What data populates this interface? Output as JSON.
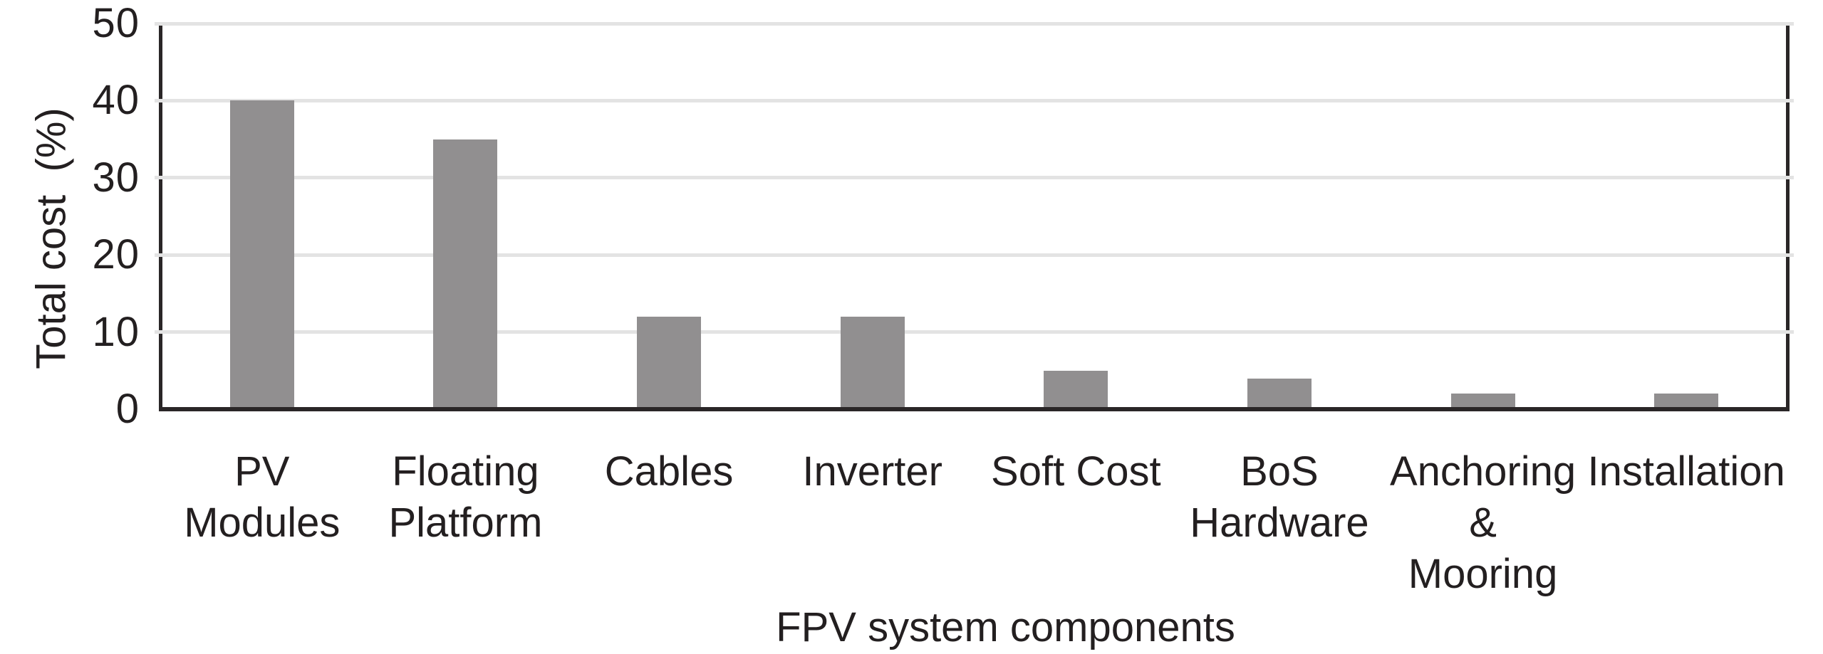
{
  "chart_data": {
    "type": "bar",
    "title": "",
    "categories": [
      "PV Modules",
      "Floating\nPlatform",
      "Cables",
      "Inverter",
      "Soft Cost",
      "BoS\nHardware",
      "Anchoring\n&\nMooring",
      "Installation"
    ],
    "values": [
      40,
      35,
      12,
      12,
      5,
      4,
      2,
      2
    ],
    "xlabel": "FPV system components",
    "ylabel": "Total cost  (%)",
    "yticks": [
      0,
      10,
      20,
      30,
      40,
      50
    ],
    "ylim": [
      0,
      50
    ],
    "grid": "horizontal",
    "legend": "none",
    "bar_color": "#918f90",
    "gridline_color": "#e3e3e3",
    "axis_color": "#2a2627",
    "text_color": "#231f20"
  }
}
